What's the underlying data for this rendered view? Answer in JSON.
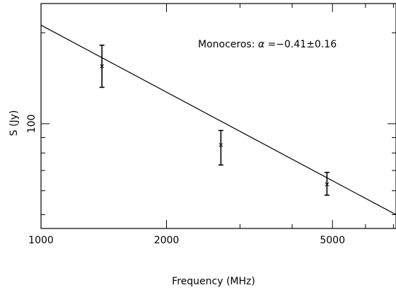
{
  "chart_data": {
    "type": "scatter",
    "title": "",
    "xlabel": "Frequency (MHz)",
    "ylabel": "S (Jy)",
    "x_scale": "log",
    "y_scale": "log",
    "xlim": [
      1000,
      7100
    ],
    "ylim": [
      45,
      250
    ],
    "x_ticks": [
      {
        "value": 1000,
        "label": "1000"
      },
      {
        "value": 2000,
        "label": "2000"
      },
      {
        "value": 5000,
        "label": "5000"
      }
    ],
    "y_ticks": [
      {
        "value": 100,
        "label": "100"
      }
    ],
    "grid": false,
    "points": [
      {
        "x": 1400,
        "y": 155,
        "y_low": 132,
        "y_high": 182
      },
      {
        "x": 2700,
        "y": 85,
        "y_low": 73,
        "y_high": 95
      },
      {
        "x": 4850,
        "y": 63,
        "y_low": 58,
        "y_high": 69
      }
    ],
    "fit_line": {
      "x": [
        1000,
        7100
      ],
      "y": [
        212,
        50
      ]
    },
    "annotation": {
      "prefix": "Monoceros: ",
      "symbol": "α",
      "value": " =−0.41±0.16"
    }
  }
}
